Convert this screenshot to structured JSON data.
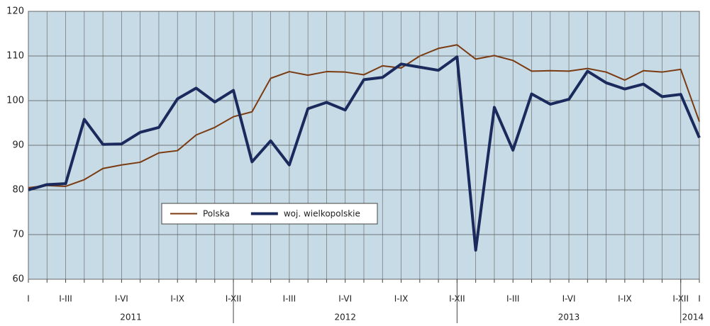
{
  "chart_data": {
    "type": "line",
    "categories": [
      "I",
      null,
      "I-III",
      null,
      null,
      "I-VI",
      null,
      null,
      "I-IX",
      null,
      null,
      "I-XII",
      null,
      null,
      "I-III",
      null,
      null,
      "I-VI",
      null,
      null,
      "I-IX",
      null,
      null,
      "I-XII",
      null,
      null,
      "I-III",
      null,
      null,
      "I-VI",
      null,
      null,
      "I-IX",
      null,
      null,
      "I-XII",
      "I"
    ],
    "years": [
      "2011",
      "2012",
      "2013",
      "2014"
    ],
    "series": [
      {
        "name": "Polska",
        "color": "#7b3b12",
        "width": 2,
        "values": [
          80.5,
          81,
          80.8,
          82.3,
          84.8,
          85.6,
          86.2,
          88.3,
          88.8,
          92.3,
          94,
          96.4,
          97.5,
          105,
          106.5,
          105.7,
          106.5,
          106.4,
          105.8,
          107.8,
          107.3,
          110,
          111.7,
          112.5,
          109.3,
          110.1,
          109,
          106.6,
          106.7,
          106.6,
          107.2,
          106.4,
          104.6,
          106.7,
          106.4,
          107,
          95.3
        ]
      },
      {
        "name": "woj. wielkopolskie",
        "color": "#1b2a5c",
        "width": 4,
        "values": [
          80,
          81.2,
          81.4,
          95.8,
          90.2,
          90.3,
          92.9,
          94,
          100.4,
          102.8,
          99.7,
          102.3,
          86.3,
          91,
          85.6,
          98.2,
          99.6,
          97.9,
          104.7,
          105.2,
          108.2,
          107.5,
          106.8,
          109.8,
          66.5,
          98.5,
          88.9,
          101.5,
          99.2,
          100.3,
          106.6,
          104,
          102.6,
          103.7,
          100.9,
          101.4,
          91.7
        ]
      }
    ],
    "ylim": [
      60,
      120
    ],
    "yticks": [
      60,
      70,
      80,
      90,
      100,
      110,
      120
    ],
    "grid": true
  }
}
